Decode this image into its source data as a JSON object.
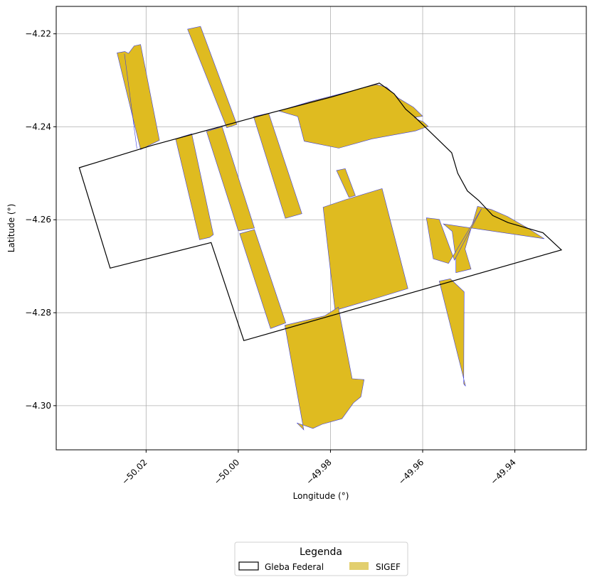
{
  "chart_data": {
    "type": "map",
    "xlabel": "Longitude (°)",
    "ylabel": "Latitude (°)",
    "xlim": [
      -50.0395,
      -49.9245
    ],
    "ylim": [
      -4.3095,
      -4.2141
    ],
    "grid": true,
    "xticks": [
      {
        "value": -50.02,
        "label": "−50.02"
      },
      {
        "value": -50.0,
        "label": "−50.00"
      },
      {
        "value": -49.98,
        "label": "−49.98"
      },
      {
        "value": -49.96,
        "label": "−49.96"
      },
      {
        "value": -49.94,
        "label": "−49.94"
      }
    ],
    "yticks": [
      {
        "value": -4.22,
        "label": "−4.22"
      },
      {
        "value": -4.24,
        "label": "−4.24"
      },
      {
        "value": -4.26,
        "label": "−4.26"
      },
      {
        "value": -4.28,
        "label": "−4.28"
      },
      {
        "value": -4.3,
        "label": "−4.30"
      }
    ],
    "legend": {
      "title": "Legenda",
      "placement": "bottom-center",
      "entries": [
        {
          "label": "Gleba Federal",
          "style": "outline",
          "stroke": "#000000",
          "fill": "#ffffff"
        },
        {
          "label": "SIGEF",
          "style": "filled",
          "fill": "#e2cf6e"
        }
      ]
    },
    "colors": {
      "gleba_stroke": "#000000",
      "sigef_fill": "#dfbb20",
      "sigef_stroke": "#3b3ee0",
      "grid": "#b0b0b0"
    },
    "gleba_federal": [
      [
        -50.0345,
        -4.2488
      ],
      [
        -50.0187,
        -4.244
      ],
      [
        -49.9956,
        -4.2377
      ],
      [
        -49.9798,
        -4.2336
      ],
      [
        -49.9694,
        -4.2306
      ],
      [
        -49.9662,
        -4.2329
      ],
      [
        -49.9637,
        -4.2362
      ],
      [
        -49.9617,
        -4.2379
      ],
      [
        -49.9537,
        -4.2456
      ],
      [
        -49.9524,
        -4.25
      ],
      [
        -49.9503,
        -4.2538
      ],
      [
        -49.9478,
        -4.2559
      ],
      [
        -49.9448,
        -4.2591
      ],
      [
        -49.9415,
        -4.2606
      ],
      [
        -49.9339,
        -4.2628
      ],
      [
        -49.9299,
        -4.2665
      ],
      [
        -49.9988,
        -4.286
      ],
      [
        -50.0059,
        -4.2649
      ],
      [
        -50.0278,
        -4.2704
      ]
    ],
    "sigef_parcels": [
      [
        [
          -50.0263,
          -4.2241
        ],
        [
          -50.0246,
          -4.2238
        ],
        [
          -50.0238,
          -4.2242
        ],
        [
          -50.0226,
          -4.2226
        ],
        [
          -50.0212,
          -4.2223
        ],
        [
          -50.0171,
          -4.2429
        ],
        [
          -50.0212,
          -4.2449
        ]
      ],
      [
        [
          -50.0247,
          -4.2243
        ],
        [
          -50.022,
          -4.2447
        ]
      ],
      [
        [
          -50.011,
          -4.219
        ],
        [
          -50.0082,
          -4.2184
        ],
        [
          -50.0003,
          -4.2395
        ],
        [
          -50.0025,
          -4.2402
        ]
      ],
      [
        [
          -50.0136,
          -4.2426
        ],
        [
          -50.0101,
          -4.2415
        ],
        [
          -50.0054,
          -4.2632
        ],
        [
          -50.0062,
          -4.2638
        ],
        [
          -50.0084,
          -4.2643
        ]
      ],
      [
        [
          -50.0069,
          -4.241
        ],
        [
          -50.0035,
          -4.24
        ],
        [
          -49.9965,
          -4.2618
        ],
        [
          -50.0,
          -4.2624
        ]
      ],
      [
        [
          -49.9967,
          -4.2378
        ],
        [
          -49.9934,
          -4.2371
        ],
        [
          -49.9862,
          -4.2587
        ],
        [
          -49.9898,
          -4.2597
        ]
      ],
      [
        [
          -49.9997,
          -4.263
        ],
        [
          -49.9965,
          -4.2621
        ],
        [
          -49.9897,
          -4.2822
        ],
        [
          -49.993,
          -4.2834
        ]
      ],
      [
        [
          -49.9912,
          -4.2366
        ],
        [
          -49.9845,
          -4.2346
        ],
        [
          -49.97,
          -4.2309
        ],
        [
          -49.9678,
          -4.2315
        ],
        [
          -49.9653,
          -4.2338
        ],
        [
          -49.962,
          -4.2358
        ],
        [
          -49.96,
          -4.2377
        ],
        [
          -49.9618,
          -4.238
        ],
        [
          -49.9612,
          -4.2384
        ],
        [
          -49.9599,
          -4.2389
        ],
        [
          -49.9588,
          -4.2399
        ],
        [
          -49.9616,
          -4.2409
        ],
        [
          -49.971,
          -4.2426
        ],
        [
          -49.9782,
          -4.2446
        ],
        [
          -49.9857,
          -4.2431
        ],
        [
          -49.9871,
          -4.2378
        ]
      ],
      [
        [
          -49.9816,
          -4.2573
        ],
        [
          -49.9768,
          -4.2557
        ],
        [
          -49.9688,
          -4.2533
        ],
        [
          -49.9632,
          -4.2748
        ],
        [
          -49.9708,
          -4.2771
        ],
        [
          -49.979,
          -4.2795
        ]
      ],
      [
        [
          -49.9787,
          -4.2494
        ],
        [
          -49.9768,
          -4.249
        ],
        [
          -49.9746,
          -4.2548
        ],
        [
          -49.976,
          -4.2552
        ]
      ],
      [
        [
          -49.9899,
          -4.2827
        ],
        [
          -49.9813,
          -4.2807
        ],
        [
          -49.9783,
          -4.2788
        ],
        [
          -49.9753,
          -4.2942
        ],
        [
          -49.9727,
          -4.2944
        ],
        [
          -49.9734,
          -4.2981
        ],
        [
          -49.975,
          -4.2994
        ],
        [
          -49.9775,
          -4.3028
        ],
        [
          -49.9818,
          -4.304
        ],
        [
          -49.9838,
          -4.3049
        ],
        [
          -49.9873,
          -4.3037
        ],
        [
          -49.9858,
          -4.3052
        ]
      ],
      [
        [
          -49.9555,
          -4.2609
        ],
        [
          -49.9536,
          -4.2625
        ],
        [
          -49.9528,
          -4.2685
        ],
        [
          -49.9528,
          -4.2714
        ],
        [
          -49.9495,
          -4.2706
        ],
        [
          -49.9508,
          -4.2663
        ],
        [
          -49.9481,
          -4.2571
        ],
        [
          -49.9451,
          -4.2578
        ],
        [
          -49.9416,
          -4.2593
        ],
        [
          -49.937,
          -4.2619
        ],
        [
          -49.9336,
          -4.2641
        ]
      ],
      [
        [
          -49.9592,
          -4.2596
        ],
        [
          -49.9564,
          -4.2599
        ],
        [
          -49.9531,
          -4.2687
        ],
        [
          -49.9472,
          -4.2576
        ],
        [
          -49.9544,
          -4.2694
        ],
        [
          -49.9577,
          -4.2684
        ]
      ],
      [
        [
          -49.9564,
          -4.2732
        ],
        [
          -49.954,
          -4.2727
        ],
        [
          -49.951,
          -4.2755
        ],
        [
          -49.9511,
          -4.2953
        ],
        [
          -49.9507,
          -4.2958
        ]
      ]
    ]
  }
}
